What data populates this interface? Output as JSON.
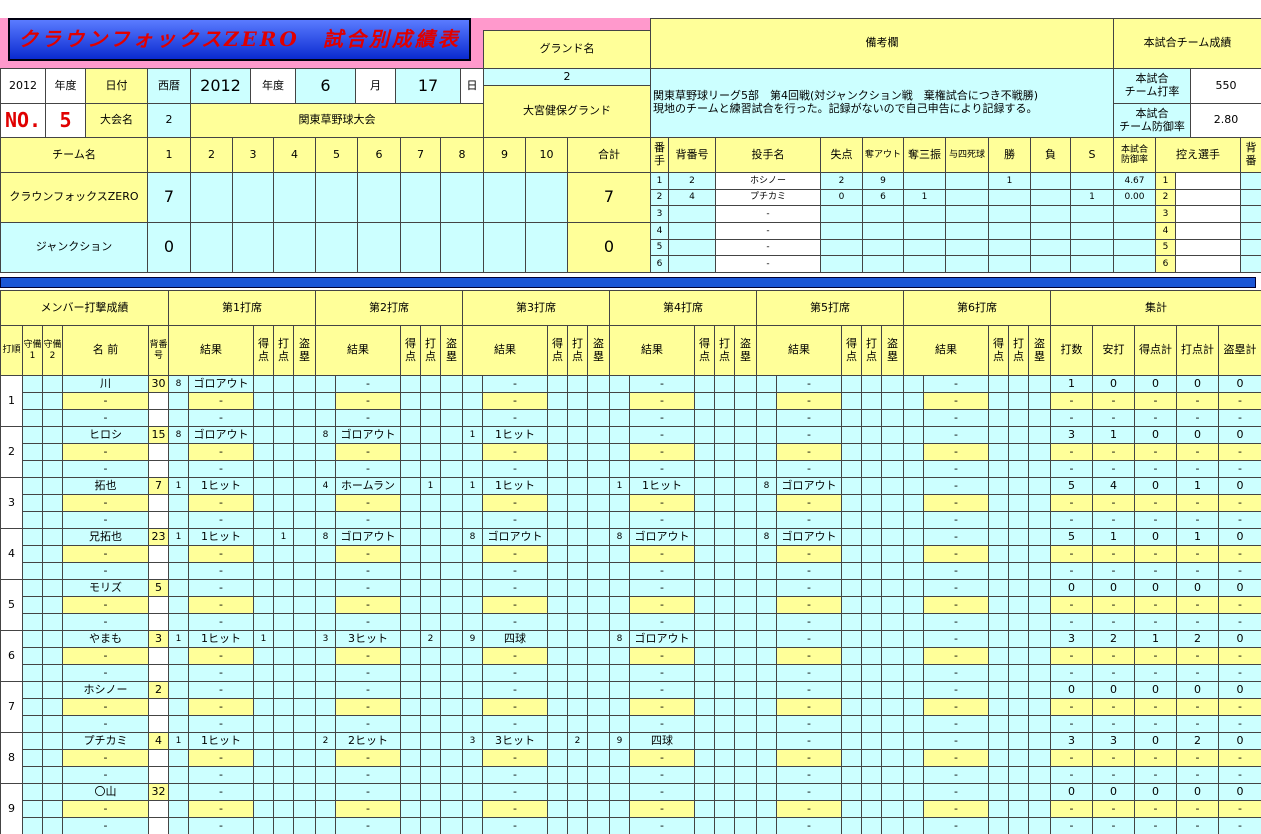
{
  "header": {
    "title": "クラウンフォックスZERO　試合別成績表",
    "ground_label": "グランド名",
    "remarks_label": "備考欄",
    "team_stats_label": "本試合チーム成績"
  },
  "info": {
    "year": 2012,
    "year_label": "年度",
    "date_label": "日付",
    "calendar_label": "西暦",
    "date_year": 2012,
    "date_year_label": "年度",
    "month": 6,
    "month_label": "月",
    "day": 17,
    "day_label": "日",
    "no_label": "NO.",
    "no": 5,
    "tournament_label": "大会名",
    "tournament_no": 2,
    "tournament": "関東草野球大会",
    "ground_no": 2,
    "ground": "大宮健保グランド",
    "remarks": [
      "関東草野球リーグ5部　第4回戦(対ジャンクション戦　棄権試合につき不戦勝)",
      "現地のチームと練習試合を行った。記録がないので自己申告により記録する。"
    ],
    "team_avg_label": "本試合\nチーム打率",
    "team_avg": 550,
    "team_era_label": "本試合\nチーム防御率",
    "team_era": "2.80"
  },
  "scoreboard": {
    "team_label": "チーム名",
    "innings": [
      1,
      2,
      3,
      4,
      5,
      6,
      7,
      8,
      9,
      10
    ],
    "total_label": "合計",
    "teams": [
      {
        "name": "クラウンフォックスZERO",
        "scores": [
          7,
          null,
          null,
          null,
          null,
          null,
          null,
          null,
          null,
          null
        ],
        "total": 7
      },
      {
        "name": "ジャンクション",
        "scores": [
          0,
          null,
          null,
          null,
          null,
          null,
          null,
          null,
          null,
          null
        ],
        "total": 0
      }
    ]
  },
  "pitching": {
    "headers": [
      "番手",
      "背番号",
      "投手名",
      "失点",
      "奪アウト",
      "奪三振",
      "与四死球",
      "勝",
      "負",
      "S",
      "本試合\n防御率",
      "控え選手",
      "背番"
    ],
    "rows": [
      [
        1,
        2,
        "ホシノー",
        2,
        9,
        null,
        null,
        1,
        null,
        null,
        "4.67",
        1,
        null
      ],
      [
        2,
        4,
        "プチカミ",
        0,
        6,
        1,
        null,
        null,
        null,
        1,
        "0.00",
        2,
        null
      ],
      [
        3,
        null,
        "-",
        null,
        null,
        null,
        null,
        null,
        null,
        null,
        null,
        3,
        null
      ],
      [
        4,
        null,
        "-",
        null,
        null,
        null,
        null,
        null,
        null,
        null,
        null,
        4,
        null
      ],
      [
        5,
        null,
        "-",
        null,
        null,
        null,
        null,
        null,
        null,
        null,
        null,
        5,
        null
      ],
      [
        6,
        null,
        "-",
        null,
        null,
        null,
        null,
        null,
        null,
        null,
        null,
        6,
        null
      ]
    ]
  },
  "batting": {
    "title": "メンバー打撃成績",
    "at_bat_labels": [
      "第1打席",
      "第2打席",
      "第3打席",
      "第4打席",
      "第5打席",
      "第6打席"
    ],
    "totals_label": "集計",
    "columns": [
      "打順",
      "守備1",
      "守備2",
      "名 前",
      "背番号"
    ],
    "at_bat_columns": [
      "結果",
      "得点",
      "打点",
      "盗塁"
    ],
    "totals_columns": [
      "打数",
      "安打",
      "得点計",
      "打点計",
      "盗塁計"
    ],
    "orders": [
      {
        "order": 1,
        "rows": [
          {
            "name": "川",
            "number": 30,
            "at_bats": [
              [
                8,
                "ゴロアウト",
                null,
                null,
                null
              ],
              [
                null,
                "-",
                null,
                null,
                null
              ],
              [
                null,
                "-",
                null,
                null,
                null
              ],
              [
                null,
                "-",
                null,
                null,
                null
              ],
              [
                null,
                "-",
                null,
                null,
                null
              ],
              [
                null,
                "-",
                null,
                null,
                null
              ]
            ],
            "totals": [
              1,
              0,
              0,
              0,
              0
            ]
          },
          {
            "name": "-",
            "results": [
              "-",
              "-",
              "-",
              "-",
              "-",
              "-"
            ],
            "totals": [
              "-",
              "-",
              "-",
              "-",
              "-"
            ]
          },
          {
            "name": "-",
            "results": [
              "-",
              "-",
              "-",
              "-",
              "-",
              "-"
            ],
            "totals": [
              "-",
              "-",
              "-",
              "-",
              "-"
            ]
          }
        ]
      },
      {
        "order": 2,
        "rows": [
          {
            "name": "ヒロシ",
            "number": 15,
            "at_bats": [
              [
                8,
                "ゴロアウト",
                null,
                null,
                null
              ],
              [
                8,
                "ゴロアウト",
                null,
                null,
                null
              ],
              [
                1,
                "1ヒット",
                null,
                null,
                null
              ],
              [
                null,
                "-",
                null,
                null,
                null
              ],
              [
                null,
                "-",
                null,
                null,
                null
              ],
              [
                null,
                "-",
                null,
                null,
                null
              ]
            ],
            "totals": [
              3,
              1,
              0,
              0,
              0
            ]
          },
          {
            "name": "-",
            "results": [
              "-",
              "-",
              "-",
              "-",
              "-",
              "-"
            ],
            "totals": [
              "-",
              "-",
              "-",
              "-",
              "-"
            ]
          },
          {
            "name": "-",
            "results": [
              "-",
              "-",
              "-",
              "-",
              "-",
              "-"
            ],
            "totals": [
              "-",
              "-",
              "-",
              "-",
              "-"
            ]
          }
        ]
      },
      {
        "order": 3,
        "rows": [
          {
            "name": "拓也",
            "number": 7,
            "at_bats": [
              [
                1,
                "1ヒット",
                null,
                null,
                null
              ],
              [
                4,
                "ホームラン",
                null,
                1,
                null
              ],
              [
                1,
                "1ヒット",
                null,
                null,
                null
              ],
              [
                1,
                "1ヒット",
                null,
                null,
                null
              ],
              [
                8,
                "ゴロアウト",
                null,
                null,
                null
              ],
              [
                null,
                "-",
                null,
                null,
                null
              ]
            ],
            "totals": [
              5,
              4,
              0,
              1,
              0
            ]
          },
          {
            "name": "-",
            "results": [
              "-",
              "-",
              "-",
              "-",
              "-",
              "-"
            ],
            "totals": [
              "-",
              "-",
              "-",
              "-",
              "-"
            ]
          },
          {
            "name": "-",
            "results": [
              "-",
              "-",
              "-",
              "-",
              "-",
              "-"
            ],
            "totals": [
              "-",
              "-",
              "-",
              "-",
              "-"
            ]
          }
        ]
      },
      {
        "order": 4,
        "rows": [
          {
            "name": "兄拓也",
            "number": 23,
            "at_bats": [
              [
                1,
                "1ヒット",
                null,
                1,
                null
              ],
              [
                8,
                "ゴロアウト",
                null,
                null,
                null
              ],
              [
                8,
                "ゴロアウト",
                null,
                null,
                null
              ],
              [
                8,
                "ゴロアウト",
                null,
                null,
                null
              ],
              [
                8,
                "ゴロアウト",
                null,
                null,
                null
              ],
              [
                null,
                "-",
                null,
                null,
                null
              ]
            ],
            "totals": [
              5,
              1,
              0,
              1,
              0
            ]
          },
          {
            "name": "-",
            "results": [
              "-",
              "-",
              "-",
              "-",
              "-",
              "-"
            ],
            "totals": [
              "-",
              "-",
              "-",
              "-",
              "-"
            ]
          },
          {
            "name": "-",
            "results": [
              "-",
              "-",
              "-",
              "-",
              "-",
              "-"
            ],
            "totals": [
              "-",
              "-",
              "-",
              "-",
              "-"
            ]
          }
        ]
      },
      {
        "order": 5,
        "rows": [
          {
            "name": "モリズ",
            "number": 5,
            "at_bats": [
              [
                null,
                "-",
                null,
                null,
                null
              ],
              [
                null,
                "-",
                null,
                null,
                null
              ],
              [
                null,
                "-",
                null,
                null,
                null
              ],
              [
                null,
                "-",
                null,
                null,
                null
              ],
              [
                null,
                "-",
                null,
                null,
                null
              ],
              [
                null,
                "-",
                null,
                null,
                null
              ]
            ],
            "totals": [
              0,
              0,
              0,
              0,
              0
            ]
          },
          {
            "name": "-",
            "results": [
              "-",
              "-",
              "-",
              "-",
              "-",
              "-"
            ],
            "totals": [
              "-",
              "-",
              "-",
              "-",
              "-"
            ]
          },
          {
            "name": "-",
            "results": [
              "-",
              "-",
              "-",
              "-",
              "-",
              "-"
            ],
            "totals": [
              "-",
              "-",
              "-",
              "-",
              "-"
            ]
          }
        ]
      },
      {
        "order": 6,
        "rows": [
          {
            "name": "やまも",
            "number": 3,
            "at_bats": [
              [
                1,
                "1ヒット",
                1,
                null,
                null
              ],
              [
                3,
                "3ヒット",
                null,
                2,
                null
              ],
              [
                9,
                "四球",
                null,
                null,
                null
              ],
              [
                8,
                "ゴロアウト",
                null,
                null,
                null
              ],
              [
                null,
                "-",
                null,
                null,
                null
              ],
              [
                null,
                "-",
                null,
                null,
                null
              ]
            ],
            "totals": [
              3,
              2,
              1,
              2,
              0
            ]
          },
          {
            "name": "-",
            "results": [
              "-",
              "-",
              "-",
              "-",
              "-",
              "-"
            ],
            "totals": [
              "-",
              "-",
              "-",
              "-",
              "-"
            ]
          },
          {
            "name": "-",
            "results": [
              "-",
              "-",
              "-",
              "-",
              "-",
              "-"
            ],
            "totals": [
              "-",
              "-",
              "-",
              "-",
              "-"
            ]
          }
        ]
      },
      {
        "order": 7,
        "rows": [
          {
            "name": "ホシノー",
            "number": 2,
            "at_bats": [
              [
                null,
                "-",
                null,
                null,
                null
              ],
              [
                null,
                "-",
                null,
                null,
                null
              ],
              [
                null,
                "-",
                null,
                null,
                null
              ],
              [
                null,
                "-",
                null,
                null,
                null
              ],
              [
                null,
                "-",
                null,
                null,
                null
              ],
              [
                null,
                "-",
                null,
                null,
                null
              ]
            ],
            "totals": [
              0,
              0,
              0,
              0,
              0
            ]
          },
          {
            "name": "-",
            "results": [
              "-",
              "-",
              "-",
              "-",
              "-",
              "-"
            ],
            "totals": [
              "-",
              "-",
              "-",
              "-",
              "-"
            ]
          },
          {
            "name": "-",
            "results": [
              "-",
              "-",
              "-",
              "-",
              "-",
              "-"
            ],
            "totals": [
              "-",
              "-",
              "-",
              "-",
              "-"
            ]
          }
        ]
      },
      {
        "order": 8,
        "rows": [
          {
            "name": "プチカミ",
            "number": 4,
            "at_bats": [
              [
                1,
                "1ヒット",
                null,
                null,
                null
              ],
              [
                2,
                "2ヒット",
                null,
                null,
                null
              ],
              [
                3,
                "3ヒット",
                null,
                2,
                null
              ],
              [
                9,
                "四球",
                null,
                null,
                null
              ],
              [
                null,
                "-",
                null,
                null,
                null
              ],
              [
                null,
                "-",
                null,
                null,
                null
              ]
            ],
            "totals": [
              3,
              3,
              0,
              2,
              0
            ]
          },
          {
            "name": "-",
            "results": [
              "-",
              "-",
              "-",
              "-",
              "-",
              "-"
            ],
            "totals": [
              "-",
              "-",
              "-",
              "-",
              "-"
            ]
          },
          {
            "name": "-",
            "results": [
              "-",
              "-",
              "-",
              "-",
              "-",
              "-"
            ],
            "totals": [
              "-",
              "-",
              "-",
              "-",
              "-"
            ]
          }
        ]
      },
      {
        "order": 9,
        "rows": [
          {
            "name": "〇山",
            "number": 32,
            "at_bats": [
              [
                null,
                "-",
                null,
                null,
                null
              ],
              [
                null,
                "-",
                null,
                null,
                null
              ],
              [
                null,
                "-",
                null,
                null,
                null
              ],
              [
                null,
                "-",
                null,
                null,
                null
              ],
              [
                null,
                "-",
                null,
                null,
                null
              ],
              [
                null,
                "-",
                null,
                null,
                null
              ]
            ],
            "totals": [
              0,
              0,
              0,
              0,
              0
            ]
          },
          {
            "name": "-",
            "results": [
              "-",
              "-",
              "-",
              "-",
              "-",
              "-"
            ],
            "totals": [
              "-",
              "-",
              "-",
              "-",
              "-"
            ]
          },
          {
            "name": "-",
            "results": [
              "-",
              "-",
              "-",
              "-",
              "-",
              "-"
            ],
            "totals": [
              "-",
              "-",
              "-",
              "-",
              "-"
            ]
          }
        ]
      }
    ]
  }
}
